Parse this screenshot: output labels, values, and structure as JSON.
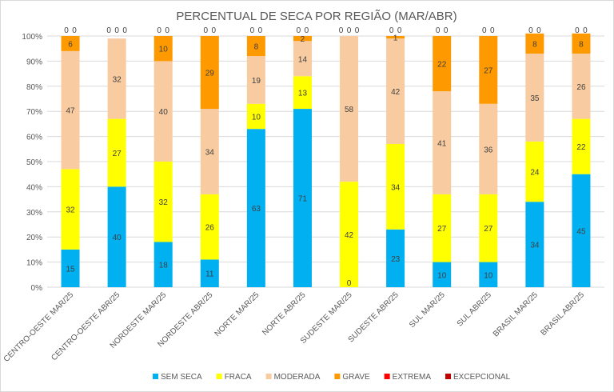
{
  "chart_data": {
    "type": "bar",
    "stacked": true,
    "title": "PERCENTUAL DE SECA POR REGIÃO (MAR/ABR)",
    "categories": [
      "CENTRO-OESTE MAR/25",
      "CENTRO-OESTE ABR/25",
      "NORDESTE MAR/25",
      "NORDESTE ABR/25",
      "NORTE MAR/25",
      "NORTE ABR/25",
      "SUDESTE MAR/25",
      "SUDESTE ABR/25",
      "SUL MAR/25",
      "SUL ABR/25",
      "BRASIL MAR/25",
      "BRASIL ABR/25"
    ],
    "yticks": [
      "0%",
      "10%",
      "20%",
      "30%",
      "40%",
      "50%",
      "60%",
      "70%",
      "80%",
      "90%",
      "100%"
    ],
    "ylim": [
      0,
      100
    ],
    "grid": true,
    "legend_position": "bottom",
    "series": [
      {
        "name": "SEM SECA",
        "color": "#00b0f0",
        "values": [
          15,
          40,
          18,
          11,
          63,
          71,
          0,
          23,
          10,
          10,
          34,
          45
        ]
      },
      {
        "name": "FRACA",
        "color": "#ffff00",
        "values": [
          32,
          27,
          32,
          26,
          10,
          13,
          42,
          34,
          27,
          27,
          24,
          22
        ]
      },
      {
        "name": "MODERADA",
        "color": "#f8cba0",
        "values": [
          47,
          32,
          40,
          34,
          19,
          14,
          58,
          42,
          41,
          36,
          35,
          26
        ]
      },
      {
        "name": "GRAVE",
        "color": "#ff9900",
        "values": [
          6,
          0,
          10,
          29,
          8,
          2,
          0,
          1,
          22,
          27,
          8,
          8
        ]
      },
      {
        "name": "EXTREMA",
        "color": "#ff0000",
        "values": [
          0,
          0,
          0,
          0,
          0,
          0,
          0,
          0,
          0,
          0,
          0,
          0
        ]
      },
      {
        "name": "EXCEPCIONAL",
        "color": "#c00000",
        "values": [
          0,
          0,
          0,
          0,
          0,
          0,
          0,
          0,
          0,
          0,
          0,
          0
        ]
      }
    ]
  }
}
